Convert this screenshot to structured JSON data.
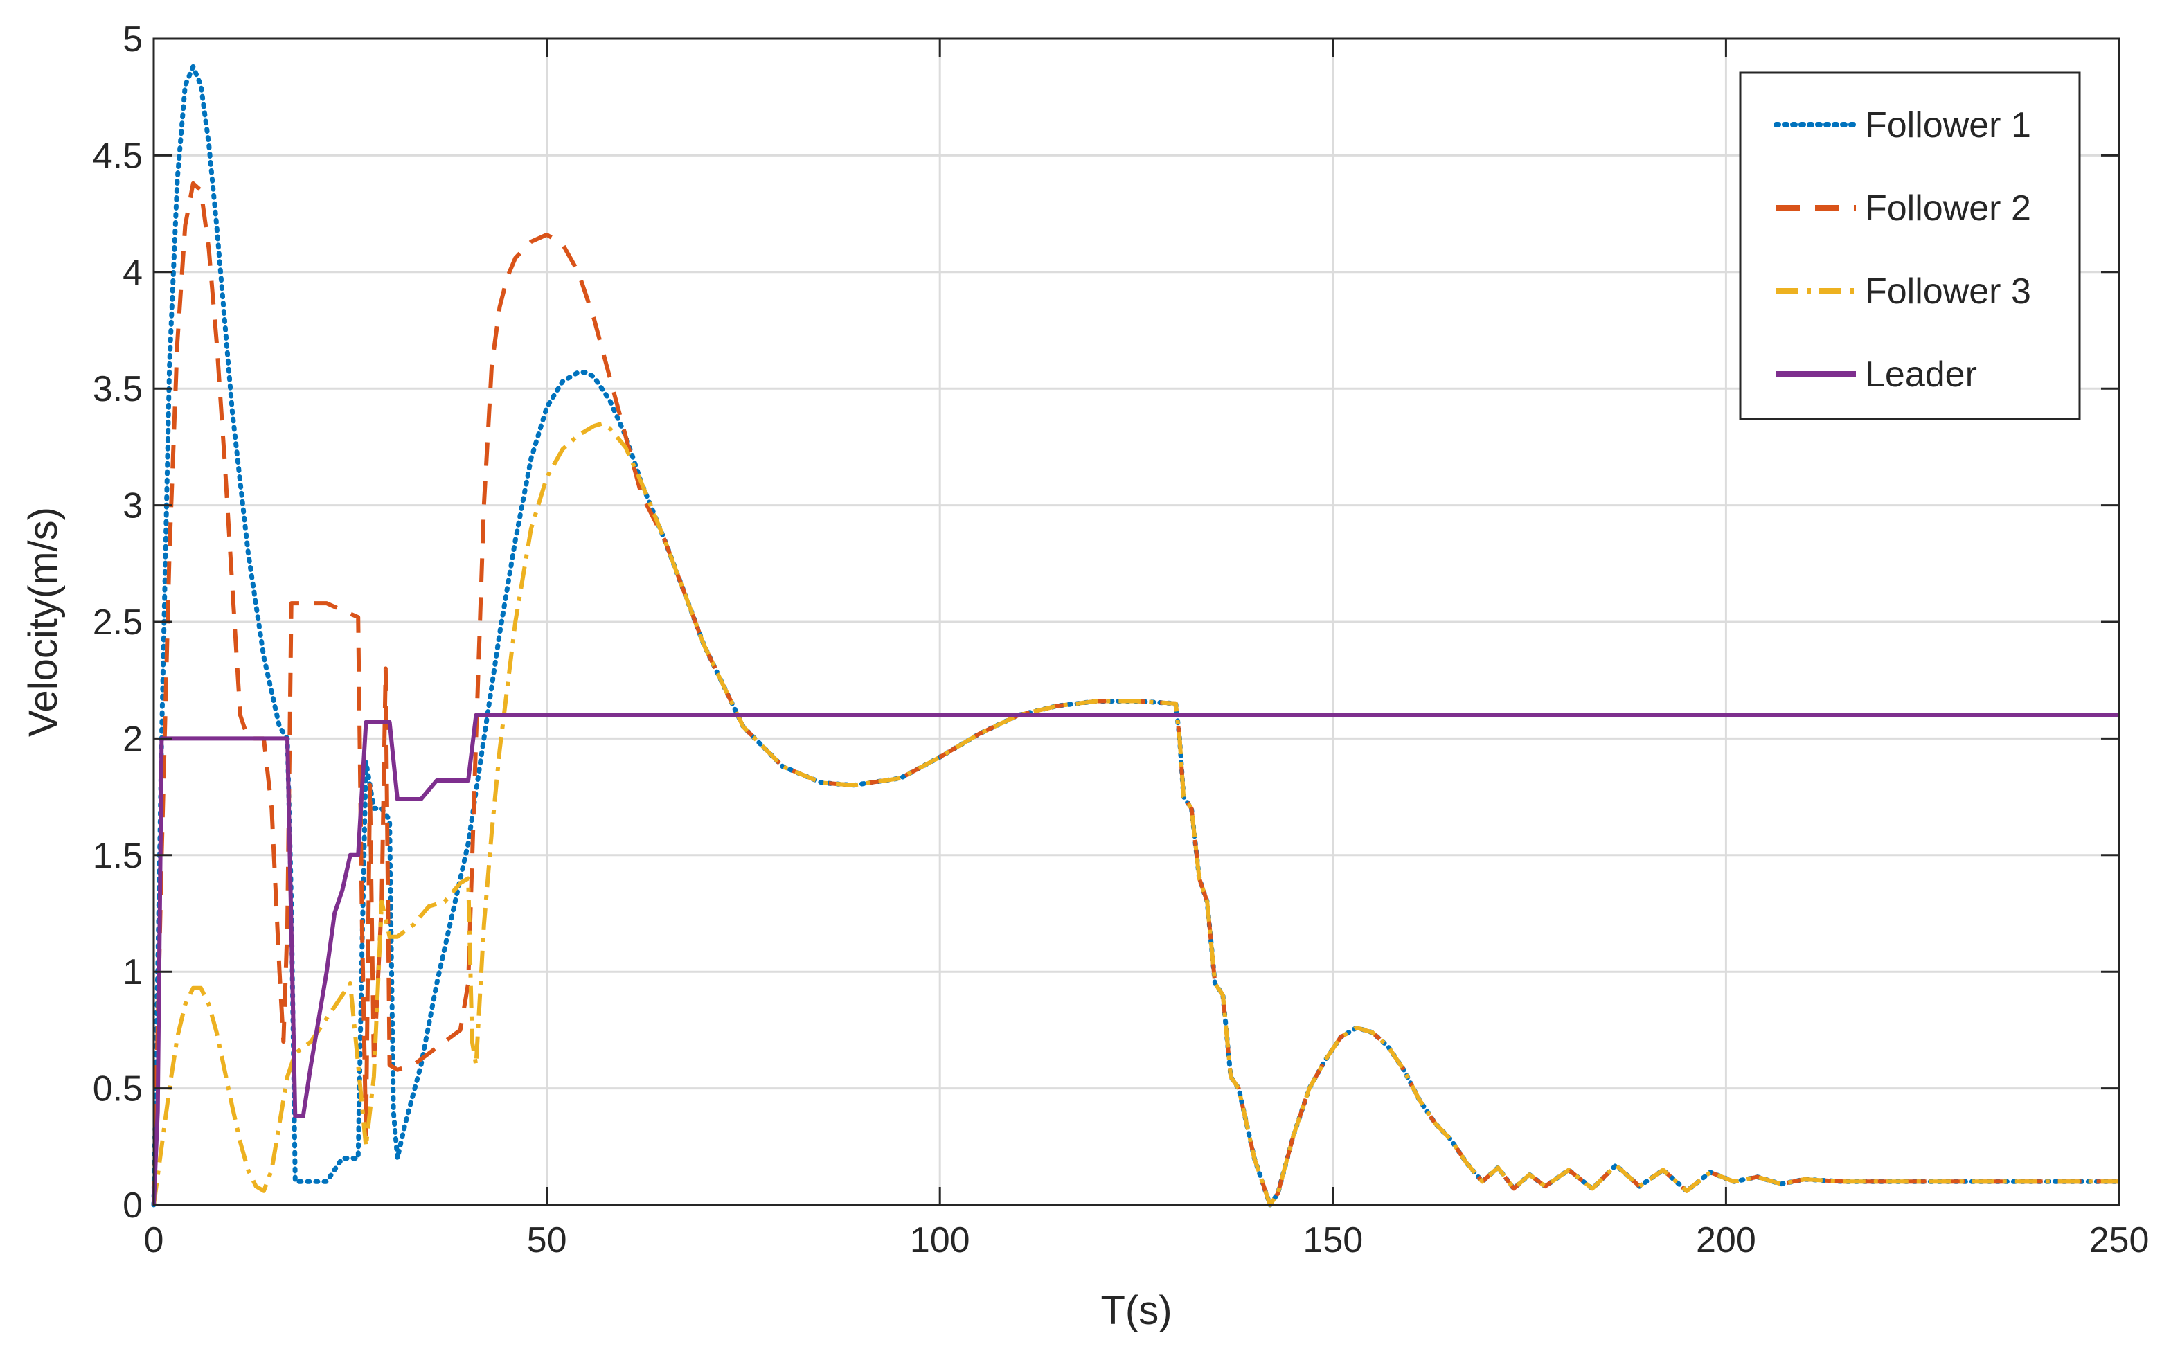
{
  "chart_data": {
    "type": "line",
    "title": "",
    "xlabel": "T(s)",
    "ylabel": "Velocity(m/s)",
    "xlim": [
      0,
      250
    ],
    "ylim": [
      0,
      5
    ],
    "xticks": [
      0,
      50,
      100,
      150,
      200,
      250
    ],
    "yticks": [
      0,
      0.5,
      1,
      1.5,
      2,
      2.5,
      3,
      3.5,
      4,
      4.5,
      5
    ],
    "xtick_labels": [
      "0",
      "50",
      "100",
      "150",
      "200",
      "250"
    ],
    "ytick_labels": [
      "0",
      "0.5",
      "1",
      "1.5",
      "2",
      "2.5",
      "3",
      "3.5",
      "4",
      "4.5",
      "5"
    ],
    "grid": true,
    "legend_position": "top-right",
    "series": [
      {
        "name": "Follower 1",
        "color": "#0072BD",
        "style": "dotted",
        "x": [
          0,
          1,
          2,
          3,
          4,
          5,
          6,
          7,
          8,
          9,
          10,
          12,
          14,
          16,
          17,
          17.5,
          18,
          19,
          20,
          22,
          24,
          25,
          26,
          26.5,
          27,
          28,
          29,
          30,
          30.5,
          31,
          32,
          34,
          36,
          38,
          40,
          42,
          44,
          46,
          48,
          50,
          52,
          54,
          55,
          56,
          58,
          60,
          62,
          65,
          70,
          75,
          80,
          85,
          89,
          95,
          100,
          105,
          110,
          115,
          120,
          125,
          130,
          130.5,
          131,
          132,
          133,
          134,
          135,
          136,
          137,
          138,
          140,
          142,
          143,
          145,
          147,
          149,
          151,
          153,
          155,
          157,
          159,
          161,
          163,
          165,
          167,
          169,
          171,
          173,
          175,
          177,
          180,
          183,
          186,
          189,
          192,
          195,
          198,
          201,
          204,
          207,
          210,
          215,
          220,
          225,
          230,
          235,
          240,
          245,
          250
        ],
        "y": [
          0,
          2.0,
          3.6,
          4.4,
          4.8,
          4.88,
          4.8,
          4.55,
          4.2,
          3.8,
          3.4,
          2.8,
          2.35,
          2.05,
          2.0,
          1.3,
          0.1,
          0.1,
          0.1,
          0.1,
          0.2,
          0.2,
          0.2,
          1.1,
          1.9,
          1.7,
          1.7,
          1.65,
          0.4,
          0.2,
          0.35,
          0.6,
          0.95,
          1.25,
          1.55,
          2.0,
          2.45,
          2.85,
          3.2,
          3.42,
          3.53,
          3.57,
          3.57,
          3.55,
          3.45,
          3.3,
          3.1,
          2.85,
          2.4,
          2.05,
          1.88,
          1.81,
          1.8,
          1.83,
          1.92,
          2.02,
          2.1,
          2.14,
          2.16,
          2.16,
          2.15,
          2.0,
          1.75,
          1.7,
          1.4,
          1.3,
          0.95,
          0.9,
          0.55,
          0.5,
          0.2,
          0.0,
          0.05,
          0.3,
          0.5,
          0.62,
          0.72,
          0.76,
          0.74,
          0.68,
          0.58,
          0.45,
          0.35,
          0.28,
          0.18,
          0.1,
          0.16,
          0.07,
          0.13,
          0.08,
          0.15,
          0.07,
          0.17,
          0.08,
          0.15,
          0.06,
          0.14,
          0.1,
          0.12,
          0.09,
          0.11,
          0.1,
          0.1,
          0.1,
          0.1,
          0.1,
          0.1,
          0.1,
          0.1
        ]
      },
      {
        "name": "Follower 2",
        "color": "#D95319",
        "style": "dashed",
        "x": [
          0,
          1,
          2,
          3,
          4,
          5,
          6,
          7,
          8,
          9,
          10,
          11,
          12,
          13,
          14,
          15,
          16,
          16.5,
          17,
          17.5,
          18,
          20,
          22,
          24,
          26,
          26.5,
          27,
          27.5,
          28,
          29,
          29.5,
          30,
          31,
          33,
          35,
          37,
          39,
          40,
          41,
          42,
          43,
          44,
          45,
          46,
          48,
          50,
          52,
          54,
          56,
          58,
          60,
          62,
          65,
          70,
          75,
          80,
          85,
          89,
          95,
          100,
          105,
          110,
          115,
          120,
          125,
          130,
          130.5,
          131,
          132,
          133,
          134,
          135,
          136,
          137,
          138,
          140,
          142,
          143,
          145,
          147,
          149,
          151,
          153,
          155,
          157,
          159,
          161,
          163,
          165,
          167,
          169,
          171,
          173,
          175,
          177,
          180,
          183,
          186,
          189,
          192,
          195,
          198,
          201,
          204,
          207,
          210,
          215,
          220,
          225,
          230,
          235,
          240,
          245,
          250
        ],
        "y": [
          0,
          1.5,
          2.8,
          3.7,
          4.2,
          4.38,
          4.35,
          4.1,
          3.7,
          3.2,
          2.65,
          2.1,
          2.0,
          2.0,
          2.0,
          1.7,
          1.0,
          0.7,
          1.2,
          2.58,
          2.58,
          2.58,
          2.58,
          2.55,
          2.52,
          1.2,
          0.3,
          1.8,
          0.6,
          1.3,
          2.3,
          0.6,
          0.58,
          0.6,
          0.65,
          0.7,
          0.75,
          0.95,
          2.0,
          3.0,
          3.6,
          3.85,
          3.98,
          4.06,
          4.13,
          4.16,
          4.12,
          4.0,
          3.8,
          3.55,
          3.3,
          3.05,
          2.85,
          2.4,
          2.05,
          1.88,
          1.81,
          1.8,
          1.83,
          1.92,
          2.02,
          2.1,
          2.14,
          2.16,
          2.16,
          2.15,
          2.0,
          1.75,
          1.7,
          1.4,
          1.3,
          0.95,
          0.9,
          0.55,
          0.5,
          0.2,
          0.0,
          0.05,
          0.3,
          0.5,
          0.62,
          0.72,
          0.76,
          0.74,
          0.68,
          0.58,
          0.45,
          0.35,
          0.28,
          0.18,
          0.1,
          0.16,
          0.07,
          0.13,
          0.08,
          0.15,
          0.07,
          0.17,
          0.08,
          0.15,
          0.06,
          0.14,
          0.1,
          0.12,
          0.09,
          0.11,
          0.1,
          0.1,
          0.1,
          0.1,
          0.1,
          0.1,
          0.1,
          0.1
        ]
      },
      {
        "name": "Follower 3",
        "color": "#EDB120",
        "style": "dashdot",
        "x": [
          0,
          1,
          2,
          3,
          4,
          5,
          6,
          7,
          8,
          9,
          10,
          11,
          12,
          13,
          14,
          15,
          16,
          17,
          18,
          20,
          22,
          24,
          25,
          26,
          27,
          28,
          29,
          30,
          31,
          33,
          35,
          37,
          39,
          40,
          40.5,
          41,
          42,
          43,
          44,
          46,
          48,
          50,
          52,
          54,
          56,
          57,
          58,
          60,
          62,
          65,
          70,
          75,
          80,
          85,
          89,
          95,
          100,
          105,
          110,
          115,
          120,
          125,
          130,
          130.5,
          131,
          132,
          133,
          134,
          135,
          136,
          137,
          138,
          140,
          142,
          143,
          145,
          147,
          149,
          151,
          153,
          155,
          157,
          159,
          161,
          163,
          165,
          167,
          169,
          171,
          173,
          175,
          177,
          180,
          183,
          186,
          189,
          192,
          195,
          198,
          201,
          204,
          207,
          210,
          215,
          220,
          225,
          230,
          235,
          240,
          245,
          250
        ],
        "y": [
          0,
          0.25,
          0.5,
          0.72,
          0.86,
          0.93,
          0.93,
          0.86,
          0.74,
          0.58,
          0.42,
          0.27,
          0.15,
          0.08,
          0.06,
          0.15,
          0.35,
          0.55,
          0.65,
          0.7,
          0.8,
          0.9,
          0.95,
          0.6,
          0.25,
          0.55,
          1.3,
          1.15,
          1.15,
          1.2,
          1.28,
          1.3,
          1.38,
          1.4,
          0.7,
          0.6,
          1.2,
          1.6,
          1.95,
          2.5,
          2.9,
          3.12,
          3.24,
          3.3,
          3.34,
          3.35,
          3.33,
          3.25,
          3.1,
          2.85,
          2.4,
          2.05,
          1.88,
          1.81,
          1.8,
          1.83,
          1.92,
          2.02,
          2.1,
          2.14,
          2.16,
          2.16,
          2.15,
          2.0,
          1.75,
          1.7,
          1.4,
          1.3,
          0.95,
          0.9,
          0.55,
          0.5,
          0.2,
          0.0,
          0.05,
          0.3,
          0.5,
          0.62,
          0.72,
          0.76,
          0.74,
          0.68,
          0.58,
          0.45,
          0.35,
          0.28,
          0.18,
          0.1,
          0.16,
          0.07,
          0.13,
          0.08,
          0.15,
          0.07,
          0.17,
          0.08,
          0.15,
          0.06,
          0.14,
          0.1,
          0.12,
          0.09,
          0.11,
          0.1,
          0.1,
          0.1,
          0.1,
          0.1,
          0.1,
          0.1,
          0.1
        ]
      },
      {
        "name": "Leader",
        "color": "#7E2F8E",
        "style": "solid",
        "x": [
          0,
          0.5,
          1,
          17,
          18,
          19,
          20,
          22,
          23,
          24,
          25,
          25.5,
          26,
          27,
          28,
          29,
          30,
          31,
          33,
          34,
          36,
          38,
          40,
          41,
          45,
          50,
          100,
          150,
          200,
          250
        ],
        "y": [
          0,
          0.4,
          2.0,
          2.0,
          0.38,
          0.38,
          0.6,
          1.0,
          1.25,
          1.35,
          1.5,
          1.5,
          1.5,
          2.07,
          2.07,
          2.07,
          2.07,
          1.74,
          1.74,
          1.74,
          1.82,
          1.82,
          1.82,
          2.1,
          2.1,
          2.1,
          2.1,
          2.1,
          2.1,
          2.1
        ]
      }
    ]
  }
}
